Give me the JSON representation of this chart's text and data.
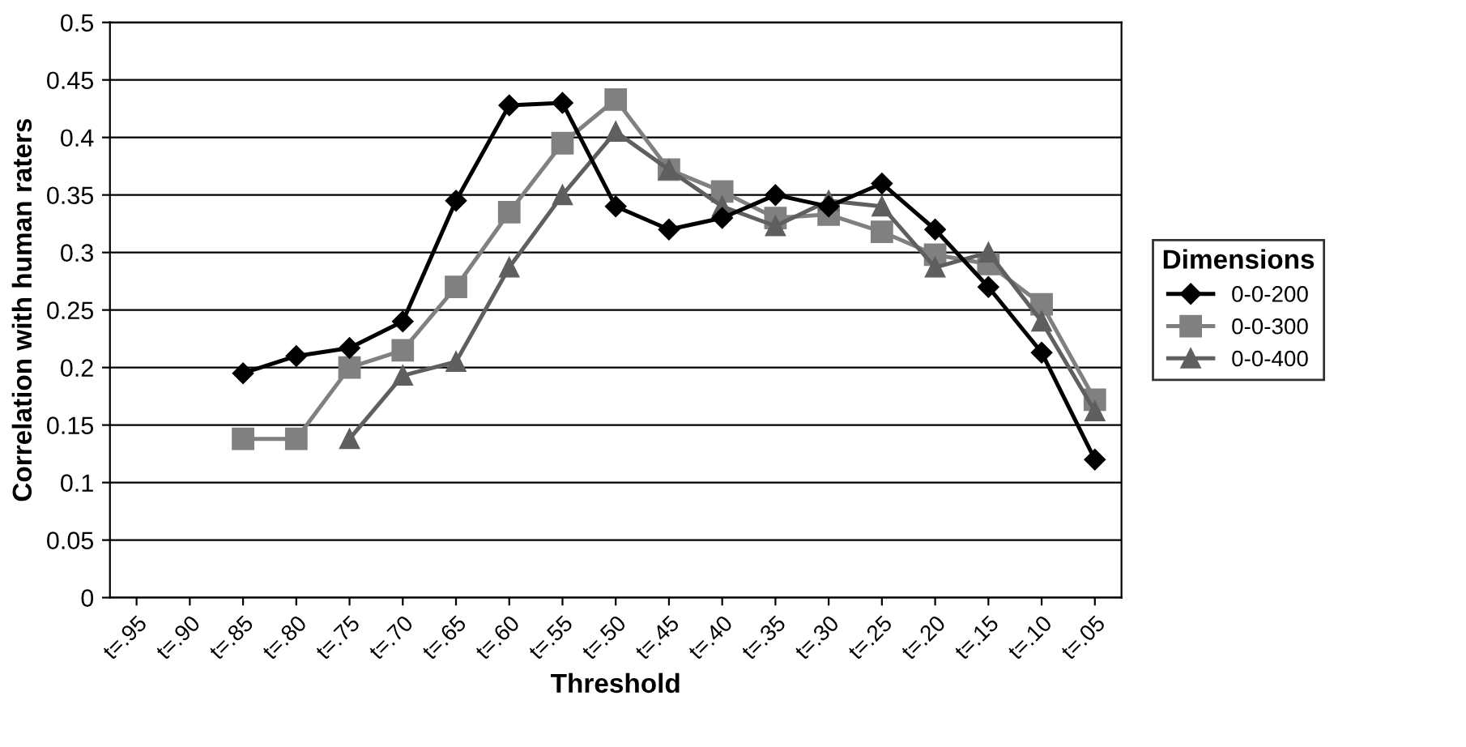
{
  "chart_data": {
    "type": "line",
    "xlabel": "Threshold",
    "ylabel": "Correlation with human raters",
    "legend_title": "Dimensions",
    "categories": [
      "t=.95",
      "t=.90",
      "t=.85",
      "t=.80",
      "t=.75",
      "t=.70",
      "t=.65",
      "t=.60",
      "t=.55",
      "t=.50",
      "t=.45",
      "t=.40",
      "t=.35",
      "t=.30",
      "t=.25",
      "t=.20",
      "t=.15",
      "t=.10",
      "t=.05"
    ],
    "series": [
      {
        "name": "0-0-200",
        "color": "#000000",
        "marker": "diamond",
        "values": [
          null,
          null,
          0.195,
          0.21,
          0.217,
          0.24,
          0.345,
          0.428,
          0.43,
          0.34,
          0.32,
          0.33,
          0.35,
          0.34,
          0.36,
          0.32,
          0.27,
          0.213,
          0.12
        ]
      },
      {
        "name": "0-0-300",
        "color": "#808080",
        "marker": "square",
        "values": [
          null,
          null,
          0.138,
          0.138,
          0.2,
          0.215,
          0.27,
          0.335,
          0.395,
          0.433,
          0.372,
          0.353,
          0.33,
          0.333,
          0.318,
          0.298,
          0.29,
          0.255,
          0.172
        ]
      },
      {
        "name": "0-0-400",
        "color": "#5f5f5f",
        "marker": "triangle",
        "values": [
          null,
          null,
          null,
          null,
          0.138,
          0.193,
          0.205,
          0.287,
          0.35,
          0.405,
          0.372,
          0.34,
          0.323,
          0.345,
          0.34,
          0.287,
          0.3,
          0.24,
          0.162
        ]
      }
    ],
    "ylim": [
      0,
      0.5
    ],
    "yticks": [
      0,
      0.05,
      0.1,
      0.15,
      0.2,
      0.25,
      0.3,
      0.35,
      0.4,
      0.45,
      0.5
    ],
    "grid": "y",
    "legend": "right",
    "line_style": "solid"
  }
}
